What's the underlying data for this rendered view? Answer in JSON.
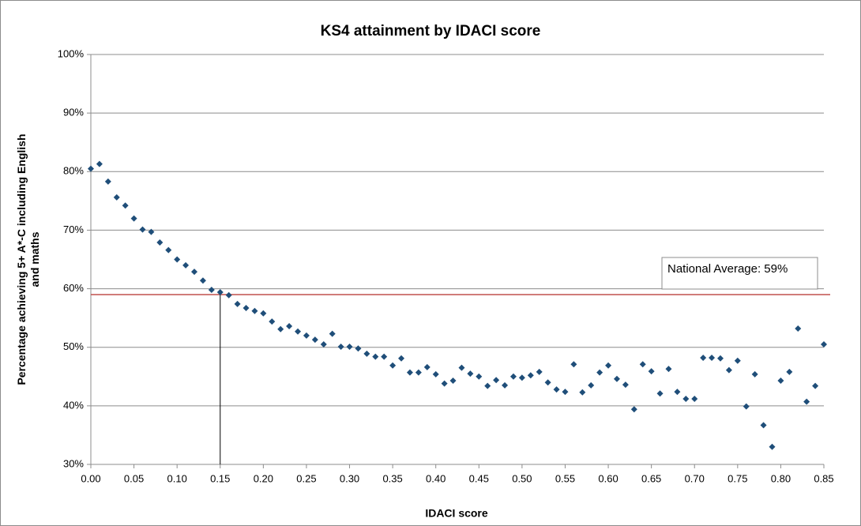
{
  "chart_data": {
    "type": "scatter",
    "title": "KS4 attainment by IDACI score",
    "x_label": "IDACI score",
    "y_label": "Percentage achieving 5+ A*-C including English and maths",
    "annotation": "National Average: 59%",
    "reference_line": {
      "y": 59,
      "x": 0.15,
      "color": "#c0504d"
    },
    "series": [
      {
        "name": "KS4 attainment",
        "color": "#1f4e79",
        "x": [
          0.0,
          0.01,
          0.02,
          0.03,
          0.04,
          0.05,
          0.06,
          0.07,
          0.08,
          0.09,
          0.1,
          0.11,
          0.12,
          0.13,
          0.14,
          0.15,
          0.16,
          0.17,
          0.18,
          0.19,
          0.2,
          0.21,
          0.22,
          0.23,
          0.24,
          0.25,
          0.26,
          0.27,
          0.28,
          0.29,
          0.3,
          0.31,
          0.32,
          0.33,
          0.34,
          0.35,
          0.36,
          0.37,
          0.38,
          0.39,
          0.4,
          0.41,
          0.42,
          0.43,
          0.44,
          0.45,
          0.46,
          0.47,
          0.48,
          0.49,
          0.5,
          0.51,
          0.52,
          0.53,
          0.54,
          0.55,
          0.56,
          0.57,
          0.58,
          0.59,
          0.6,
          0.61,
          0.62,
          0.63,
          0.64,
          0.65,
          0.66,
          0.67,
          0.68,
          0.69,
          0.7,
          0.71,
          0.72,
          0.73,
          0.74,
          0.75,
          0.76,
          0.77,
          0.78,
          0.79,
          0.8,
          0.81,
          0.82,
          0.83,
          0.84,
          0.85
        ],
        "values": [
          80.5,
          81.3,
          78.3,
          75.6,
          74.2,
          72.0,
          70.1,
          69.7,
          67.9,
          66.6,
          65.0,
          64.0,
          62.9,
          61.4,
          59.8,
          59.4,
          58.9,
          57.4,
          56.7,
          56.2,
          55.8,
          54.4,
          53.1,
          53.6,
          52.7,
          52.0,
          51.3,
          50.5,
          52.3,
          50.1,
          50.1,
          49.8,
          48.9,
          48.4,
          48.4,
          46.9,
          48.1,
          45.7,
          45.7,
          46.6,
          45.4,
          43.8,
          44.3,
          46.5,
          45.5,
          45.0,
          43.4,
          44.4,
          43.5,
          45.0,
          44.8,
          45.2,
          45.8,
          44.0,
          42.8,
          42.4,
          47.1,
          42.3,
          43.5,
          45.7,
          46.9,
          44.6,
          43.6,
          39.4,
          47.1,
          45.9,
          42.1,
          46.3,
          42.4,
          41.2,
          41.2,
          48.2,
          48.2,
          48.1,
          46.1,
          47.7,
          39.9,
          45.4,
          36.7,
          33.0,
          44.3,
          45.8,
          53.2,
          40.7,
          43.4,
          50.5
        ]
      }
    ],
    "xlim": [
      0,
      0.85
    ],
    "xticks": [
      {
        "value": 0,
        "label": "0.00"
      },
      0.05,
      {
        "value": 0.1,
        "label": "0.10"
      },
      0.15,
      {
        "value": 0.2,
        "label": "0.20"
      },
      0.25,
      {
        "value": 0.3,
        "label": "0.30"
      },
      0.35,
      {
        "value": 0.4,
        "label": "0.40"
      },
      0.45,
      {
        "value": 0.5,
        "label": "0.50"
      },
      0.55,
      {
        "value": 0.6,
        "label": "0.60"
      },
      0.65,
      {
        "value": 0.7,
        "label": "0.70"
      },
      0.75,
      {
        "value": 0.8,
        "label": "0.80"
      },
      0.85
    ],
    "ylim": [
      30,
      100
    ],
    "yticks": [
      {
        "value": 30,
        "label": "30%"
      },
      {
        "value": 40,
        "label": "40%"
      },
      {
        "value": 50,
        "label": "50%"
      },
      {
        "value": 60,
        "label": "60%"
      },
      {
        "value": 70,
        "label": "70%"
      },
      {
        "value": 80,
        "label": "80%"
      },
      {
        "value": 90,
        "label": "90%"
      },
      {
        "value": 100,
        "label": "100%"
      }
    ],
    "grid": true
  }
}
